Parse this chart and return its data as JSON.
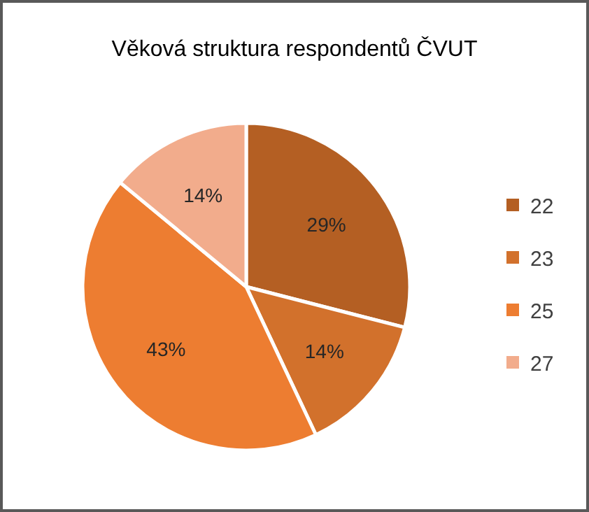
{
  "chart_data": {
    "type": "pie",
    "title": "Věková struktura respondentů ČVUT",
    "categories": [
      "22",
      "23",
      "25",
      "27"
    ],
    "values": [
      29,
      14,
      43,
      14
    ],
    "value_labels": [
      "29%",
      "14%",
      "43%",
      "14%"
    ],
    "colors": [
      "#b45f23",
      "#d2712c",
      "#ed7d31",
      "#f2ac8c"
    ],
    "legend": "right"
  }
}
